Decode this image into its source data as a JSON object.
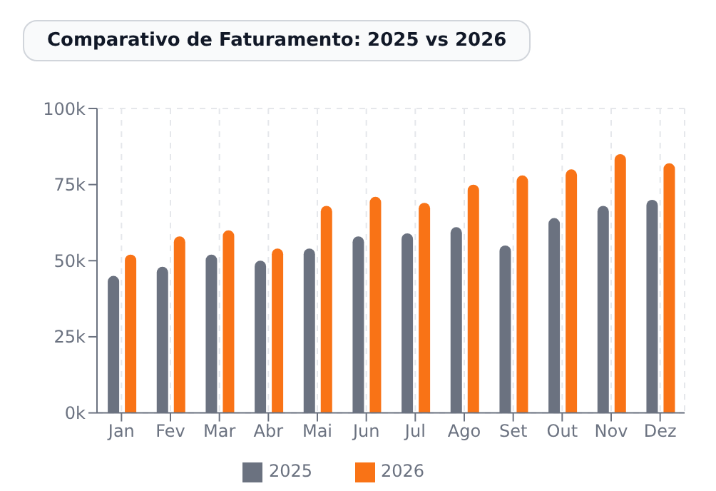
{
  "chart_data": {
    "type": "bar",
    "title": "Comparativo de Faturamento: 2025 vs 2026",
    "categories": [
      "Jan",
      "Fev",
      "Mar",
      "Abr",
      "Mai",
      "Jun",
      "Jul",
      "Ago",
      "Set",
      "Out",
      "Nov",
      "Dez"
    ],
    "series": [
      {
        "name": "2025",
        "color": "#6b7280",
        "values": [
          45,
          48,
          52,
          50,
          54,
          58,
          59,
          61,
          55,
          64,
          68,
          70
        ]
      },
      {
        "name": "2026",
        "color": "#f97316",
        "values": [
          52,
          58,
          60,
          54,
          68,
          71,
          69,
          75,
          78,
          80,
          85,
          82
        ]
      }
    ],
    "ylim": [
      0,
      100
    ],
    "yticks": [
      {
        "value": 0,
        "label": "0k"
      },
      {
        "value": 25,
        "label": "25k"
      },
      {
        "value": 50,
        "label": "50k"
      },
      {
        "value": 75,
        "label": "75k"
      },
      {
        "value": 100,
        "label": "100k"
      }
    ],
    "grid": true,
    "legend": "bottom"
  }
}
